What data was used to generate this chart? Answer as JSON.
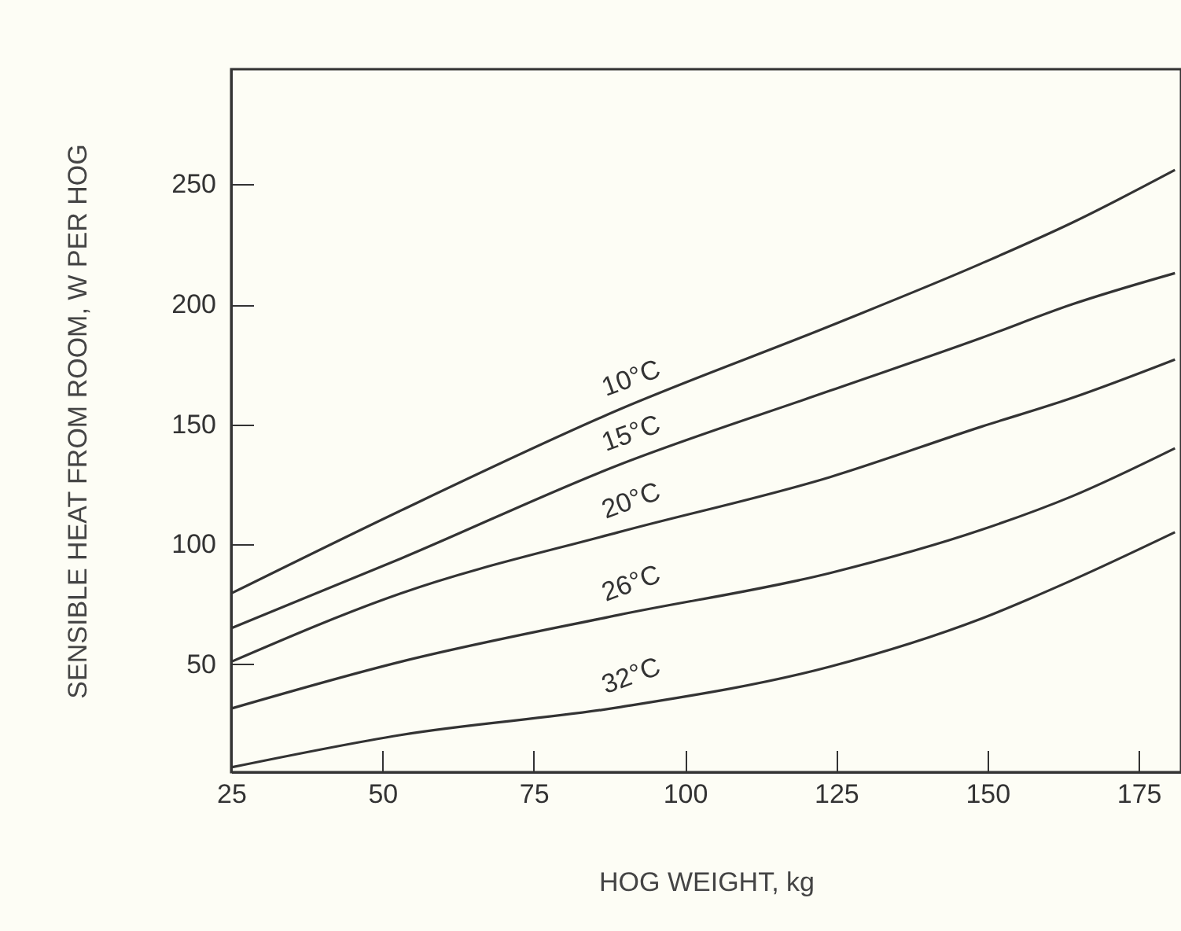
{
  "chart_data": {
    "type": "line",
    "xlabel": "HOG WEIGHT, kg",
    "ylabel": "SENSIBLE HEAT FROM ROOM, W PER HOG",
    "x": [
      25,
      53,
      89,
      124,
      149,
      164,
      181
    ],
    "xlim": [
      25,
      182
    ],
    "xticks": [
      25,
      50,
      75,
      100,
      125,
      150,
      175
    ],
    "ylim": [
      5,
      298
    ],
    "yticks": [
      50,
      100,
      150,
      200,
      250
    ],
    "grid": false,
    "legend": false,
    "series": [
      {
        "name": "10°C",
        "color": "#333333",
        "values": [
          79.5,
          114,
          156,
          191,
          217,
          234,
          256
        ]
      },
      {
        "name": "15°C",
        "color": "#333333",
        "values": [
          65,
          94,
          133,
          164,
          186,
          200,
          213
        ]
      },
      {
        "name": "20°C",
        "color": "#333333",
        "values": [
          51,
          79.5,
          105,
          128,
          149,
          161,
          177
        ]
      },
      {
        "name": "26°C",
        "color": "#333333",
        "values": [
          31.5,
          51,
          70.5,
          88,
          106,
          120,
          140
        ]
      },
      {
        "name": "32°C",
        "color": "#333333",
        "values": [
          7,
          20.5,
          32,
          49,
          69,
          85,
          105
        ]
      }
    ]
  }
}
